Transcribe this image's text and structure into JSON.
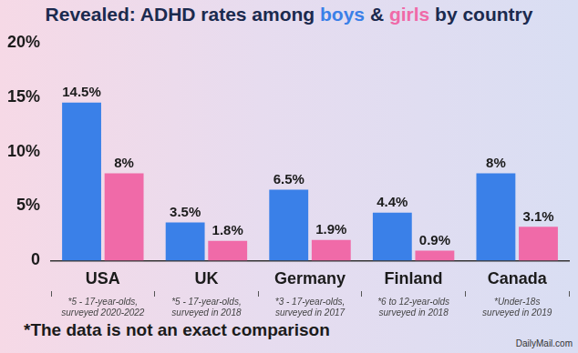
{
  "chart_data": {
    "type": "bar",
    "title": "Revealed: ADHD rates among boys & girls by country",
    "categories": [
      "USA",
      "UK",
      "Germany",
      "Finland",
      "Canada"
    ],
    "category_notes": [
      [
        "*5 - 17-year-olds,",
        "surveyed 2020-2022"
      ],
      [
        "*5 - 17-year-olds,",
        "surveyed in 2018"
      ],
      [
        "*3 - 17-year-olds,",
        "surveyed in 2017"
      ],
      [
        "*6 to 12-year-olds",
        "surveyed in 2018"
      ],
      [
        "*Under-18s",
        "surveyed in 2019"
      ]
    ],
    "series": [
      {
        "name": "boys",
        "color": "#3a80e8",
        "values": [
          14.5,
          3.5,
          6.5,
          4.4,
          8
        ],
        "value_labels": [
          "14.5%",
          "3.5%",
          "6.5%",
          "4.4%",
          "8%"
        ]
      },
      {
        "name": "girls",
        "color": "#f06aa8",
        "values": [
          8,
          1.8,
          1.9,
          0.9,
          3.1
        ],
        "value_labels": [
          "8%",
          "1.8%",
          "1.9%",
          "0.9%",
          "3.1%"
        ]
      }
    ],
    "ylim": [
      0,
      20
    ],
    "yticks": [
      0,
      {
        "value": 5,
        "label": "5%"
      },
      {
        "value": 10,
        "label": "10%"
      },
      {
        "value": 15,
        "label": "15%"
      },
      {
        "value": 20,
        "label": "20%"
      }
    ],
    "grid": false,
    "data_labels": true,
    "footnote": "*The data is not an exact comparison",
    "source": "DailyMail.com"
  }
}
